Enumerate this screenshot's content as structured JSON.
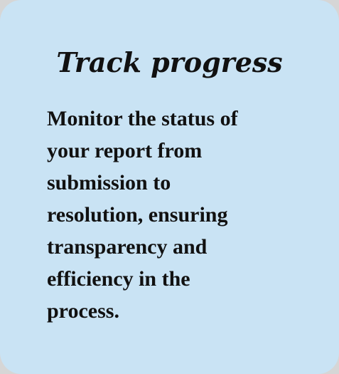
{
  "card": {
    "title": "Track progress",
    "body": "Monitor the status of\nyour report from\nsubmission to\nresolution, ensuring\ntransparency and\nefficiency in the\nprocess."
  },
  "colors": {
    "background": "#c9e3f4",
    "text": "#111111"
  }
}
